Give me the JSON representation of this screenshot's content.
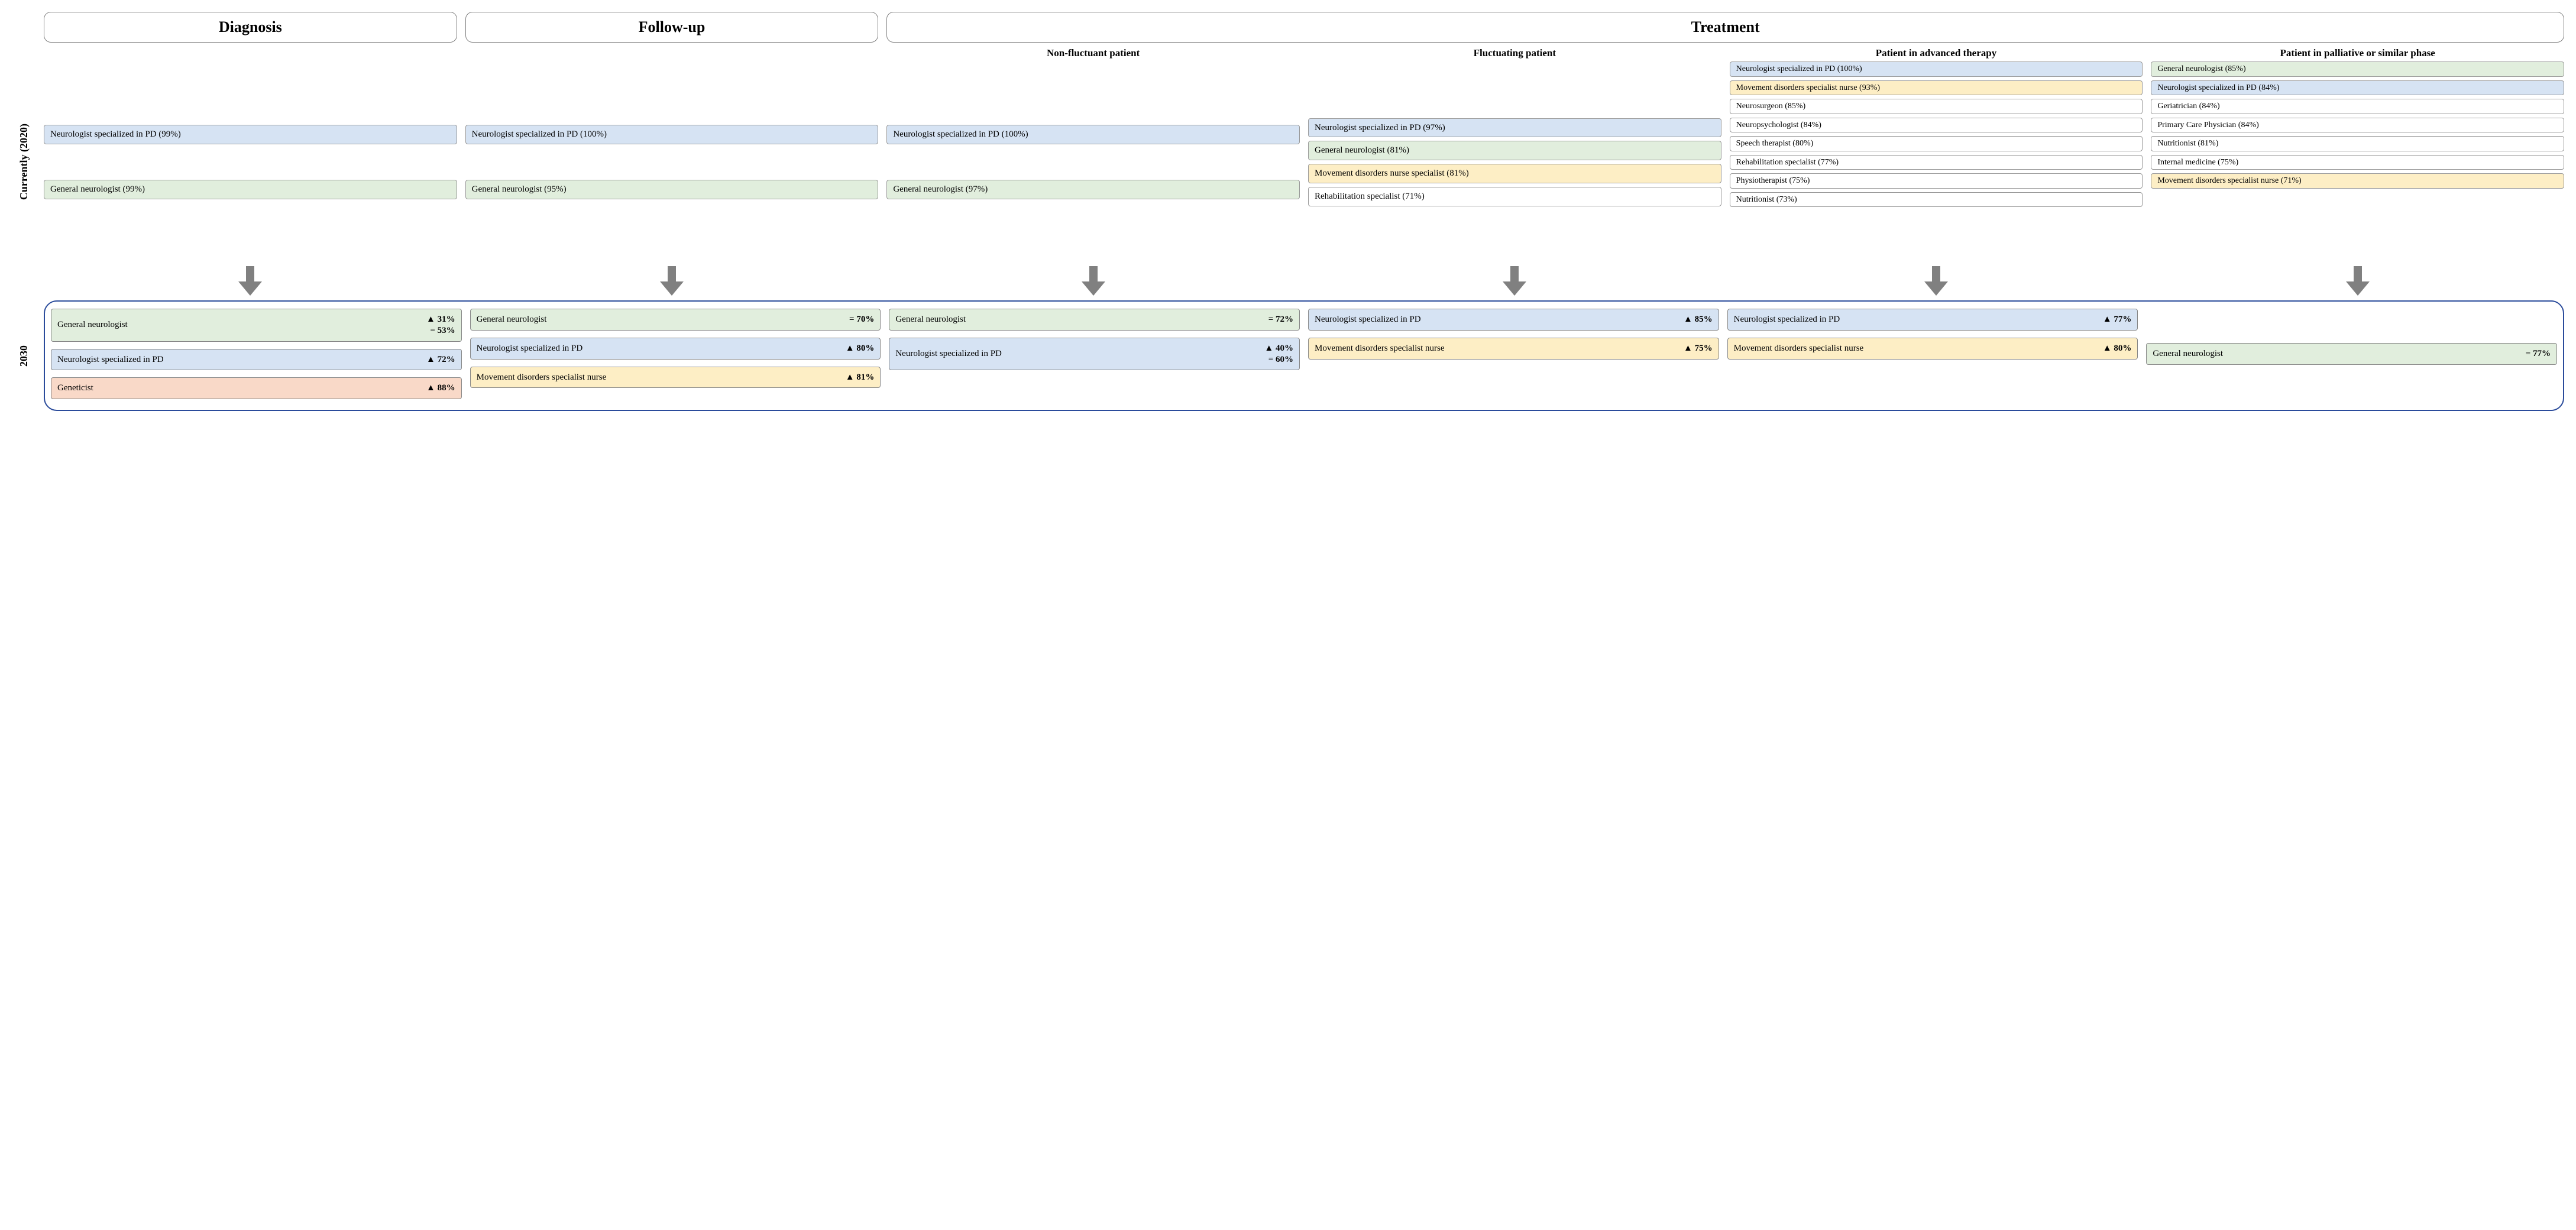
{
  "colors": {
    "blue": "#d6e3f3",
    "green": "#e1eedd",
    "yellow": "#fdeec5",
    "orange": "#f9d9c8",
    "white": "#ffffff",
    "arrow": "#808080",
    "border2030": "#2a4b9b"
  },
  "headers": {
    "diagnosis": "Diagnosis",
    "followup": "Follow-up",
    "treatment": "Treatment"
  },
  "subheaders": {
    "nonfluct": "Non-fluctuant patient",
    "fluct": "Fluctuating patient",
    "advanced": "Patient in advanced therapy",
    "palliative": "Patient in palliative or similar phase"
  },
  "rowlabels": {
    "current": "Currently (2020)",
    "future": "2030"
  },
  "current": {
    "diagnosis": [
      {
        "label": "Neurologist specialized in PD (99%)",
        "c": "blue"
      },
      {
        "label": "General neurologist (99%)",
        "c": "green"
      }
    ],
    "followup": [
      {
        "label": "Neurologist specialized in PD (100%)",
        "c": "blue"
      },
      {
        "label": "General neurologist (95%)",
        "c": "green"
      }
    ],
    "nonfluct": [
      {
        "label": "Neurologist specialized in PD (100%)",
        "c": "blue"
      },
      {
        "label": "General neurologist (97%)",
        "c": "green"
      }
    ],
    "fluct": [
      {
        "label": "Neurologist specialized in PD (97%)",
        "c": "blue"
      },
      {
        "label": "General neurologist (81%)",
        "c": "green"
      },
      {
        "label": "Movement disorders nurse specialist (81%)",
        "c": "yellow"
      },
      {
        "label": "Rehabilitation specialist (71%)",
        "c": "white"
      }
    ],
    "advanced": [
      {
        "label": "Neurologist specialized in PD (100%)",
        "c": "blue"
      },
      {
        "label": "Movement disorders specialist nurse (93%)",
        "c": "yellow"
      },
      {
        "label": "Neurosurgeon (85%)",
        "c": "white"
      },
      {
        "label": "Neuropsychologist (84%)",
        "c": "white"
      },
      {
        "label": "Speech therapist (80%)",
        "c": "white"
      },
      {
        "label": "Rehabilitation specialist (77%)",
        "c": "white"
      },
      {
        "label": "Physiotherapist (75%)",
        "c": "white"
      },
      {
        "label": "Nutritionist (73%)",
        "c": "white"
      }
    ],
    "palliative": [
      {
        "label": "General neurologist (85%)",
        "c": "green"
      },
      {
        "label": "Neurologist specialized in PD (84%)",
        "c": "blue"
      },
      {
        "label": "Geriatrician (84%)",
        "c": "white"
      },
      {
        "label": "Primary Care Physician (84%)",
        "c": "white"
      },
      {
        "label": "Nutritionist (81%)",
        "c": "white"
      },
      {
        "label": "Internal medicine (75%)",
        "c": "white"
      },
      {
        "label": "Movement disorders specialist nurse (71%)",
        "c": "yellow"
      }
    ]
  },
  "future": {
    "diagnosis": [
      {
        "label": "General neurologist",
        "c": "green",
        "vals": [
          {
            "t": "tri",
            "v": "31%"
          },
          {
            "t": "eq",
            "v": "53%"
          }
        ]
      },
      {
        "label": "Neurologist specialized in PD",
        "c": "blue",
        "vals": [
          {
            "t": "tri",
            "v": "72%"
          }
        ]
      },
      {
        "label": "Geneticist",
        "c": "orange",
        "vals": [
          {
            "t": "tri",
            "v": "88%"
          }
        ]
      }
    ],
    "followup": [
      {
        "label": "General neurologist",
        "c": "green",
        "vals": [
          {
            "t": "eq",
            "v": "70%"
          }
        ]
      },
      {
        "label": "Neurologist specialized in PD",
        "c": "blue",
        "vals": [
          {
            "t": "tri",
            "v": "80%"
          }
        ]
      },
      {
        "label": "Movement disorders specialist nurse",
        "c": "yellow",
        "vals": [
          {
            "t": "tri",
            "v": "81%"
          }
        ]
      }
    ],
    "nonfluct": [
      {
        "label": "General neurologist",
        "c": "green",
        "vals": [
          {
            "t": "eq",
            "v": "72%"
          }
        ]
      },
      {
        "label": "Neurologist specialized in PD",
        "c": "blue",
        "vals": [
          {
            "t": "tri",
            "v": "40%"
          },
          {
            "t": "eq",
            "v": "60%"
          }
        ]
      }
    ],
    "fluct": [
      {
        "label": "Neurologist specialized in PD",
        "c": "blue",
        "vals": [
          {
            "t": "tri",
            "v": "85%"
          }
        ]
      },
      {
        "label": "Movement disorders specialist nurse",
        "c": "yellow",
        "vals": [
          {
            "t": "tri",
            "v": "75%"
          }
        ]
      }
    ],
    "advanced": [
      {
        "label": "Neurologist specialized in PD",
        "c": "blue",
        "vals": [
          {
            "t": "tri",
            "v": "77%"
          }
        ]
      },
      {
        "label": "Movement disorders specialist nurse",
        "c": "yellow",
        "vals": [
          {
            "t": "tri",
            "v": "80%"
          }
        ]
      }
    ],
    "palliative": [
      {
        "label": "General neurologist",
        "c": "green",
        "vals": [
          {
            "t": "eq",
            "v": "77%"
          }
        ]
      }
    ]
  }
}
